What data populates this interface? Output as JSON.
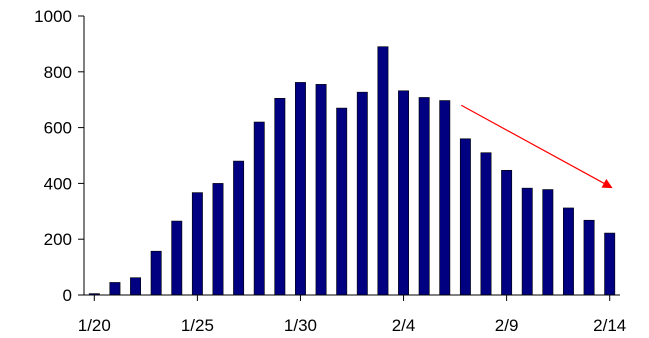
{
  "chart_data": {
    "type": "bar",
    "title": "",
    "xlabel": "",
    "ylabel": "",
    "categories": [
      "1/20",
      "1/21",
      "1/22",
      "1/23",
      "1/24",
      "1/25",
      "1/26",
      "1/27",
      "1/28",
      "1/29",
      "1/30",
      "1/31",
      "2/1",
      "2/2",
      "2/3",
      "2/4",
      "2/5",
      "2/6",
      "2/7",
      "2/8",
      "2/9",
      "2/10",
      "2/11",
      "2/12",
      "2/13",
      "2/14"
    ],
    "x_tick_labels": [
      "1/20",
      "1/25",
      "1/30",
      "2/4",
      "2/9",
      "2/14"
    ],
    "values": [
      5,
      45,
      62,
      157,
      265,
      367,
      400,
      480,
      620,
      705,
      762,
      755,
      670,
      727,
      890,
      732,
      708,
      697,
      560,
      510,
      447,
      383,
      378,
      312,
      268,
      222
    ],
    "ylim": [
      0,
      1000
    ],
    "y_ticks": [
      0,
      200,
      400,
      600,
      800,
      1000
    ],
    "grid": false,
    "legend": "none",
    "bar_color": "#000080",
    "bar_outline": "#000000",
    "annotation": {
      "type": "arrow",
      "color": "#ff0000",
      "direction": "down-right"
    }
  }
}
